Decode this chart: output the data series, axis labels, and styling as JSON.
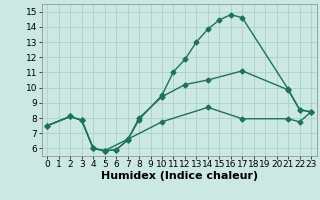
{
  "xlabel": "Humidex (Indice chaleur)",
  "background_color": "#cce8e3",
  "line_color": "#1e7060",
  "grid_color": "#b0d4cc",
  "xlim": [
    -0.5,
    23.5
  ],
  "ylim": [
    5.5,
    15.5
  ],
  "xticks": [
    0,
    1,
    2,
    3,
    4,
    5,
    6,
    7,
    8,
    9,
    10,
    11,
    12,
    13,
    14,
    15,
    16,
    17,
    18,
    19,
    20,
    21,
    22,
    23
  ],
  "yticks": [
    6,
    7,
    8,
    9,
    10,
    11,
    12,
    13,
    14,
    15
  ],
  "line1_x": [
    0,
    2,
    3,
    4,
    5,
    6,
    7,
    8,
    10,
    11,
    12,
    13,
    14,
    15,
    16,
    17,
    21,
    22,
    23
  ],
  "line1_y": [
    7.5,
    8.1,
    7.85,
    6.0,
    5.85,
    5.9,
    6.55,
    7.9,
    9.5,
    11.05,
    11.85,
    13.0,
    13.85,
    14.45,
    14.8,
    14.6,
    9.9,
    8.55,
    8.4
  ],
  "line2_x": [
    0,
    2,
    3,
    4,
    5,
    6,
    7,
    8,
    10,
    12,
    14,
    17,
    21,
    22,
    23
  ],
  "line2_y": [
    7.5,
    8.1,
    7.85,
    6.0,
    5.85,
    5.9,
    6.55,
    8.0,
    9.4,
    10.2,
    10.5,
    11.1,
    9.85,
    8.55,
    8.4
  ],
  "line3_x": [
    0,
    2,
    3,
    4,
    5,
    7,
    10,
    14,
    17,
    21,
    22,
    23
  ],
  "line3_y": [
    7.5,
    8.1,
    7.85,
    6.0,
    5.85,
    6.6,
    7.75,
    8.7,
    7.95,
    7.95,
    7.75,
    8.4
  ],
  "marker": "D",
  "marker_size": 2.5,
  "linewidth": 1.0,
  "xlabel_fontsize": 8,
  "tick_fontsize": 6.5
}
